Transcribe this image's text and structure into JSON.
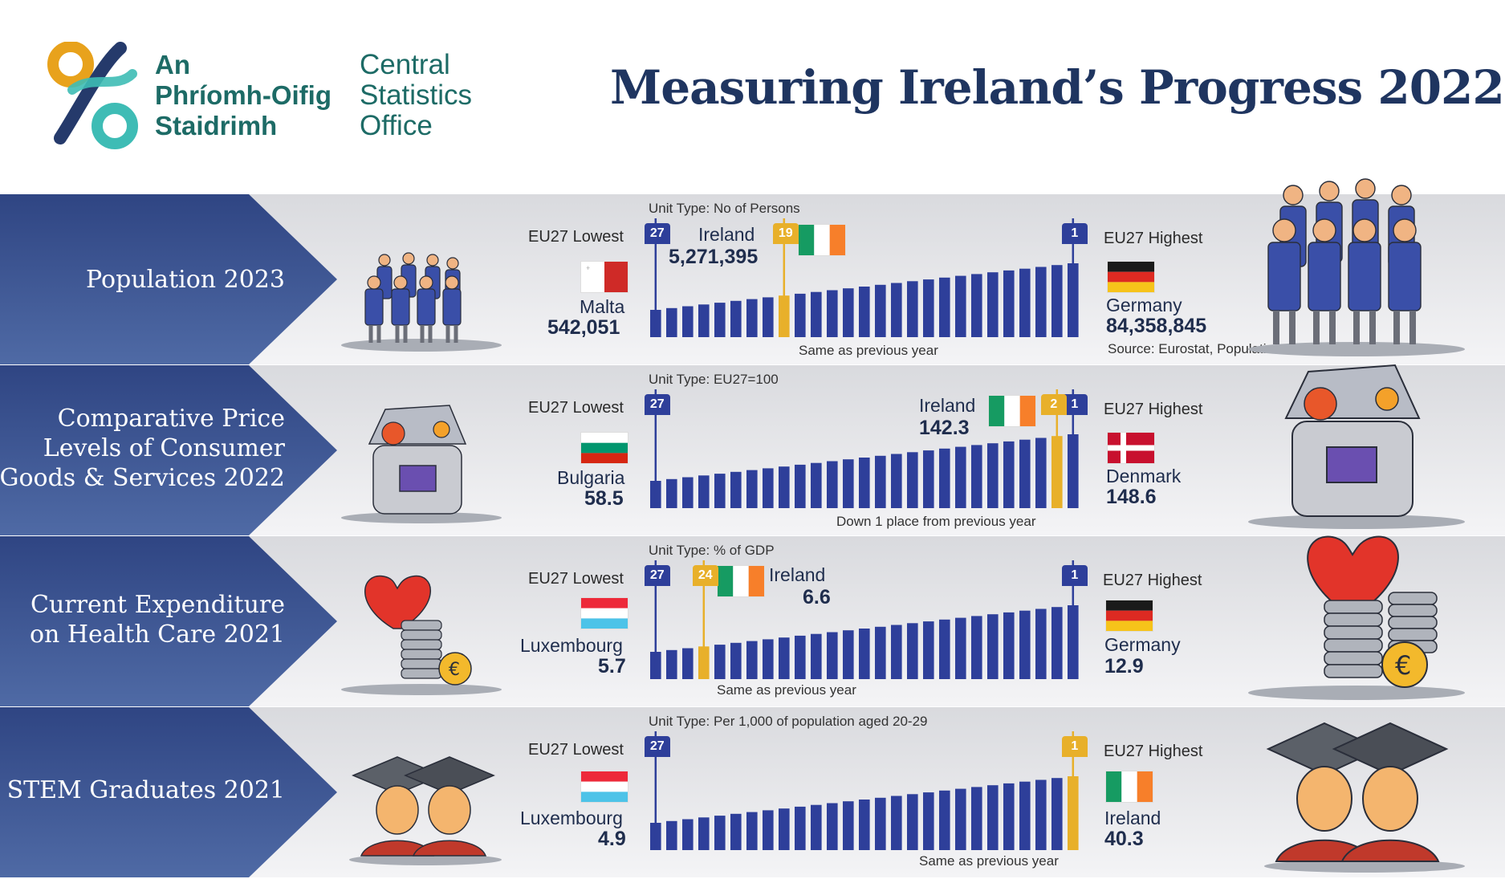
{
  "header": {
    "logo_ga": [
      "An",
      "Phríomh-Oifig",
      "Staidrimh"
    ],
    "logo_en": [
      "Central",
      "Statistics",
      "Office"
    ],
    "title": "Measuring Ireland’s Progress 2022"
  },
  "colors": {
    "navy": "#1f3560",
    "bar_blue": "#2e3f9a",
    "ireland_gold": "#e8b02a",
    "teal": "#1d6b66"
  },
  "rows": [
    {
      "label_lines": [
        "Population 2023"
      ],
      "unit_type": "Unit Type: No of Persons",
      "lowest_label": "EU27 Lowest",
      "lowest_rank": "27",
      "lowest_country": "Malta",
      "lowest_value": "542,051",
      "highest_label": "EU27 Highest",
      "highest_rank": "1",
      "highest_country": "Germany",
      "highest_value": "84,358,845",
      "ireland_name": "Ireland",
      "ireland_value": "5,271,395",
      "ireland_rank": "19",
      "note": "Same as previous year",
      "source": "Source: Eurostat, Population and Social Conditions",
      "icon": "people-group-icon"
    },
    {
      "label_lines": [
        "Comparative Price",
        "Levels of Consumer",
        "Goods & Services 2022"
      ],
      "unit_type": "Unit Type: EU27=100",
      "lowest_label": "EU27 Lowest",
      "lowest_rank": "27",
      "lowest_country": "Bulgaria",
      "lowest_value": "58.5",
      "highest_label": "EU27 Highest",
      "highest_rank": "1",
      "highest_country": "Denmark",
      "highest_value": "148.6",
      "ireland_name": "Ireland",
      "ireland_value": "142.3",
      "ireland_rank": "2",
      "note": "Down 1 place from previous year",
      "icon": "shopping-bag-icon"
    },
    {
      "label_lines": [
        "Current Expenditure",
        "on Health Care 2021"
      ],
      "unit_type": "Unit Type: % of GDP",
      "lowest_label": "EU27 Lowest",
      "lowest_rank": "27",
      "lowest_country": "Luxembourg",
      "lowest_value": "5.7",
      "highest_label": "EU27 Highest",
      "highest_rank": "1",
      "highest_country": "Germany",
      "highest_value": "12.9",
      "ireland_name": "Ireland",
      "ireland_value": "6.6",
      "ireland_rank": "24",
      "note": "Same as previous year",
      "icon": "heart-coins-icon"
    },
    {
      "label_lines": [
        "STEM Graduates 2021"
      ],
      "unit_type": "Unit Type: Per 1,000 of population aged 20-29",
      "lowest_label": "EU27 Lowest",
      "lowest_rank": "27",
      "lowest_country": "Luxembourg",
      "lowest_value": "4.9",
      "highest_label": "EU27 Highest",
      "highest_rank": "1",
      "highest_country": "Ireland",
      "highest_value": "40.3",
      "ireland_rank": "1",
      "note": "Same as previous year",
      "icon": "graduates-icon"
    }
  ]
}
